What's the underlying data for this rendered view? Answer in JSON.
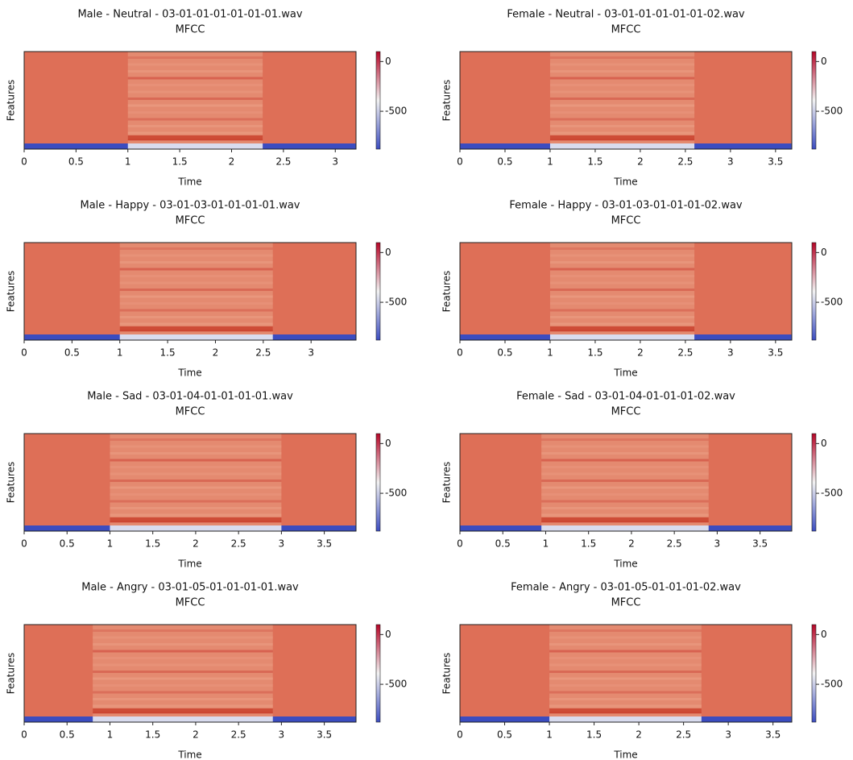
{
  "chart_data": [
    {
      "type": "heatmap",
      "title": "Male - Neutral - 03-01-01-01-01-01-01.wav",
      "subtitle": "MFCC",
      "xlabel": "Time",
      "ylabel": "Features",
      "xlim": [
        0,
        3.2
      ],
      "xticks": [
        0,
        0.5,
        1,
        1.5,
        2,
        2.5,
        3
      ],
      "voiced": [
        1,
        2.3
      ],
      "clim": [
        -880,
        100
      ],
      "cticks": [
        0,
        -500
      ],
      "colors": [
        "#3b4cc0",
        "#f2f2f2",
        "#b40426"
      ]
    },
    {
      "type": "heatmap",
      "title": "Female - Neutral - 03-01-01-01-01-01-02.wav",
      "subtitle": "MFCC",
      "xlabel": "Time",
      "ylabel": "Features",
      "xlim": [
        0,
        3.68
      ],
      "xticks": [
        0,
        0.5,
        1,
        1.5,
        2,
        2.5,
        3,
        3.5
      ],
      "voiced": [
        1,
        2.6
      ],
      "clim": [
        -880,
        100
      ],
      "cticks": [
        0,
        -500
      ],
      "colors": [
        "#3b4cc0",
        "#f2f2f2",
        "#b40426"
      ]
    },
    {
      "type": "heatmap",
      "title": "Male - Happy - 03-01-03-01-01-01-01.wav",
      "subtitle": "MFCC",
      "xlabel": "Time",
      "ylabel": "Features",
      "xlim": [
        0,
        3.47
      ],
      "xticks": [
        0,
        0.5,
        1,
        1.5,
        2,
        2.5,
        3
      ],
      "voiced": [
        1,
        2.6
      ],
      "clim": [
        -880,
        100
      ],
      "cticks": [
        0,
        -500
      ],
      "colors": [
        "#3b4cc0",
        "#f2f2f2",
        "#b40426"
      ]
    },
    {
      "type": "heatmap",
      "title": "Female - Happy - 03-01-03-01-01-01-02.wav",
      "subtitle": "MFCC",
      "xlabel": "Time",
      "ylabel": "Features",
      "xlim": [
        0,
        3.68
      ],
      "xticks": [
        0,
        0.5,
        1,
        1.5,
        2,
        2.5,
        3,
        3.5
      ],
      "voiced": [
        1,
        2.6
      ],
      "clim": [
        -880,
        100
      ],
      "cticks": [
        0,
        -500
      ],
      "colors": [
        "#3b4cc0",
        "#f2f2f2",
        "#b40426"
      ]
    },
    {
      "type": "heatmap",
      "title": "Male - Sad - 03-01-04-01-01-01-01.wav",
      "subtitle": "MFCC",
      "xlabel": "Time",
      "ylabel": "Features",
      "xlim": [
        0,
        3.87
      ],
      "xticks": [
        0,
        0.5,
        1,
        1.5,
        2,
        2.5,
        3,
        3.5
      ],
      "voiced": [
        1,
        3
      ],
      "clim": [
        -880,
        100
      ],
      "cticks": [
        0,
        -500
      ],
      "colors": [
        "#3b4cc0",
        "#f2f2f2",
        "#b40426"
      ]
    },
    {
      "type": "heatmap",
      "title": "Female - Sad - 03-01-04-01-01-01-02.wav",
      "subtitle": "MFCC",
      "xlabel": "Time",
      "ylabel": "Features",
      "xlim": [
        0,
        3.87
      ],
      "xticks": [
        0,
        0.5,
        1,
        1.5,
        2,
        2.5,
        3,
        3.5
      ],
      "voiced": [
        0.95,
        2.9
      ],
      "clim": [
        -880,
        100
      ],
      "cticks": [
        0,
        -500
      ],
      "colors": [
        "#3b4cc0",
        "#f2f2f2",
        "#b40426"
      ]
    },
    {
      "type": "heatmap",
      "title": "Male - Angry - 03-01-05-01-01-01-01.wav",
      "subtitle": "MFCC",
      "xlabel": "Time",
      "ylabel": "Features",
      "xlim": [
        0,
        3.87
      ],
      "xticks": [
        0,
        0.5,
        1,
        1.5,
        2,
        2.5,
        3,
        3.5
      ],
      "voiced": [
        0.8,
        2.9
      ],
      "clim": [
        -880,
        100
      ],
      "cticks": [
        0,
        -500
      ],
      "colors": [
        "#3b4cc0",
        "#f2f2f2",
        "#b40426"
      ]
    },
    {
      "type": "heatmap",
      "title": "Female - Angry - 03-01-05-01-01-01-02.wav",
      "subtitle": "MFCC",
      "xlabel": "Time",
      "ylabel": "Features",
      "xlim": [
        0,
        3.71
      ],
      "xticks": [
        0,
        0.5,
        1,
        1.5,
        2,
        2.5,
        3,
        3.5
      ],
      "voiced": [
        1,
        2.7
      ],
      "clim": [
        -880,
        100
      ],
      "cticks": [
        0,
        -500
      ],
      "colors": [
        "#3b4cc0",
        "#f2f2f2",
        "#b40426"
      ]
    }
  ]
}
